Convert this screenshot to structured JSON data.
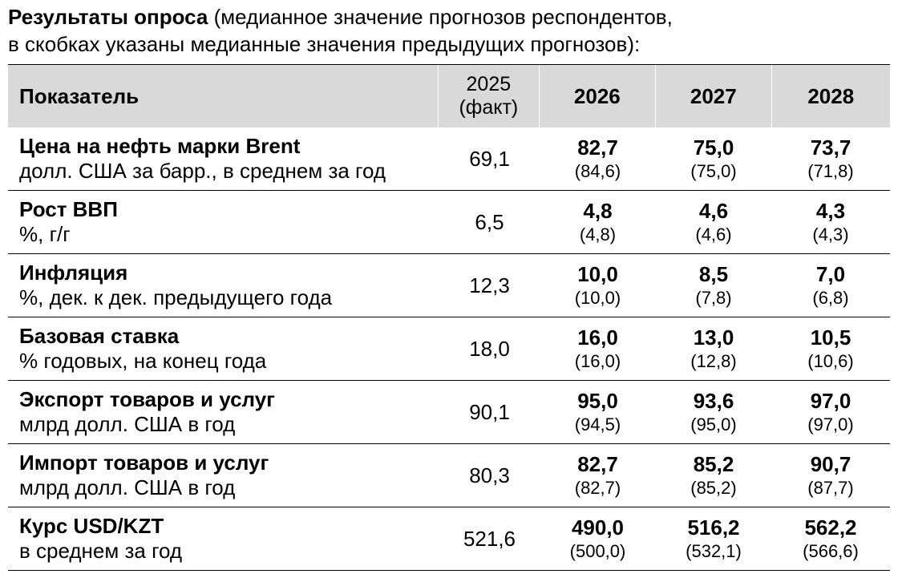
{
  "caption": {
    "title_bold": "Результаты опроса",
    "title_rest": " (медианное значение прогнозов респондентов,",
    "line2": "в скобках указаны медианные значения предыдущих прогнозов):"
  },
  "header": {
    "indicator": "Показатель",
    "fact_year": "2025",
    "fact_note": "(факт)",
    "years": [
      "2026",
      "2027",
      "2028"
    ]
  },
  "rows": [
    {
      "title": "Цена на нефть марки Brent",
      "unit": "долл. США за барр., в среднем за год",
      "fact": "69,1",
      "values": [
        {
          "main": "82,7",
          "prev": "(84,6)"
        },
        {
          "main": "75,0",
          "prev": "(75,0)"
        },
        {
          "main": "73,7",
          "prev": "(71,8)"
        }
      ]
    },
    {
      "title": "Рост ВВП",
      "unit": "%, г/г",
      "fact": "6,5",
      "values": [
        {
          "main": "4,8",
          "prev": "(4,8)"
        },
        {
          "main": "4,6",
          "prev": "(4,6)"
        },
        {
          "main": "4,3",
          "prev": "(4,3)"
        }
      ]
    },
    {
      "title": "Инфляция",
      "unit": "%, дек. к дек. предыдущего года",
      "fact": "12,3",
      "values": [
        {
          "main": "10,0",
          "prev": "(10,0)"
        },
        {
          "main": "8,5",
          "prev": "(7,8)"
        },
        {
          "main": "7,0",
          "prev": "(6,8)"
        }
      ]
    },
    {
      "title": "Базовая ставка",
      "unit": "% годовых, на конец года",
      "fact": "18,0",
      "values": [
        {
          "main": "16,0",
          "prev": "(16,0)"
        },
        {
          "main": "13,0",
          "prev": "(12,8)"
        },
        {
          "main": "10,5",
          "prev": "(10,6)"
        }
      ]
    },
    {
      "title": "Экспорт товаров и услуг",
      "unit": "млрд долл. США в год",
      "fact": "90,1",
      "values": [
        {
          "main": "95,0",
          "prev": "(94,5)"
        },
        {
          "main": "93,6",
          "prev": "(95,0)"
        },
        {
          "main": "97,0",
          "prev": "(97,0)"
        }
      ]
    },
    {
      "title": "Импорт товаров и услуг",
      "unit": "млрд долл. США в год",
      "fact": "80,3",
      "values": [
        {
          "main": "82,7",
          "prev": "(82,7)"
        },
        {
          "main": "85,2",
          "prev": "(85,2)"
        },
        {
          "main": "90,7",
          "prev": "(87,7)"
        }
      ]
    },
    {
      "title": "Курс USD/KZT",
      "unit": "в среднем за год",
      "fact": "521,6",
      "values": [
        {
          "main": "490,0",
          "prev": "(500,0)"
        },
        {
          "main": "516,2",
          "prev": "(532,1)"
        },
        {
          "main": "562,2",
          "prev": "(566,6)"
        }
      ]
    }
  ],
  "colors": {
    "header_bg": "#d9d9d9",
    "rule": "#000000"
  }
}
